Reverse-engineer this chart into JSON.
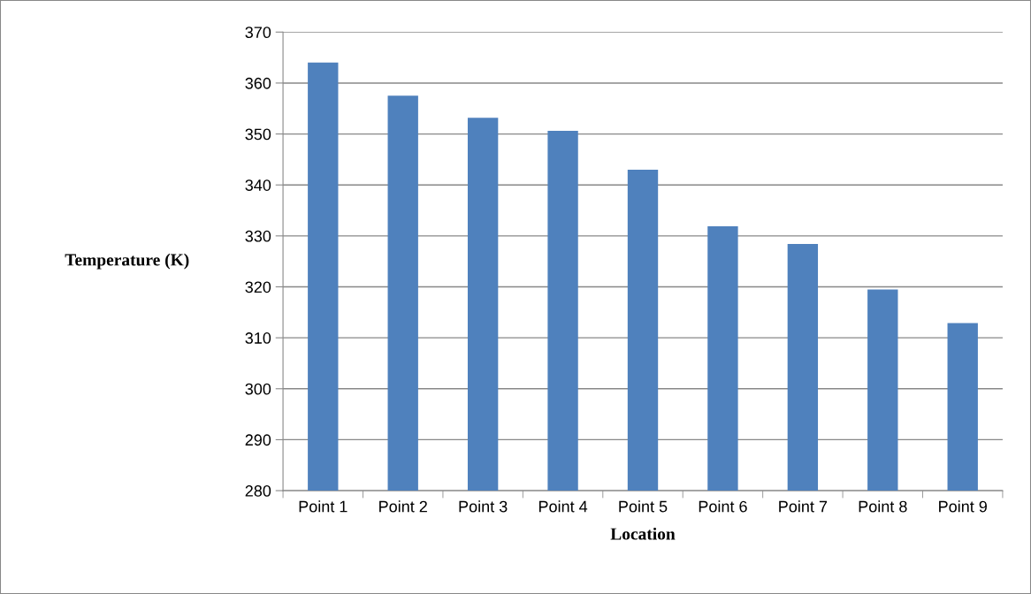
{
  "chart_data": {
    "type": "bar",
    "xlabel": "Location",
    "ylabel": "Temperature (K)",
    "categories": [
      "Point 1",
      "Point 2",
      "Point 3",
      "Point 4",
      "Point 5",
      "Point 6",
      "Point 7",
      "Point 8",
      "Point 9"
    ],
    "values": [
      364,
      357.5,
      353.2,
      350.6,
      343,
      331.9,
      328.4,
      319.5,
      312.9
    ],
    "color": "#4f81bd",
    "ylim": [
      280,
      370
    ],
    "yticks": [
      280,
      290,
      300,
      310,
      320,
      330,
      340,
      350,
      360,
      370
    ],
    "grid": "y",
    "legend": false
  }
}
